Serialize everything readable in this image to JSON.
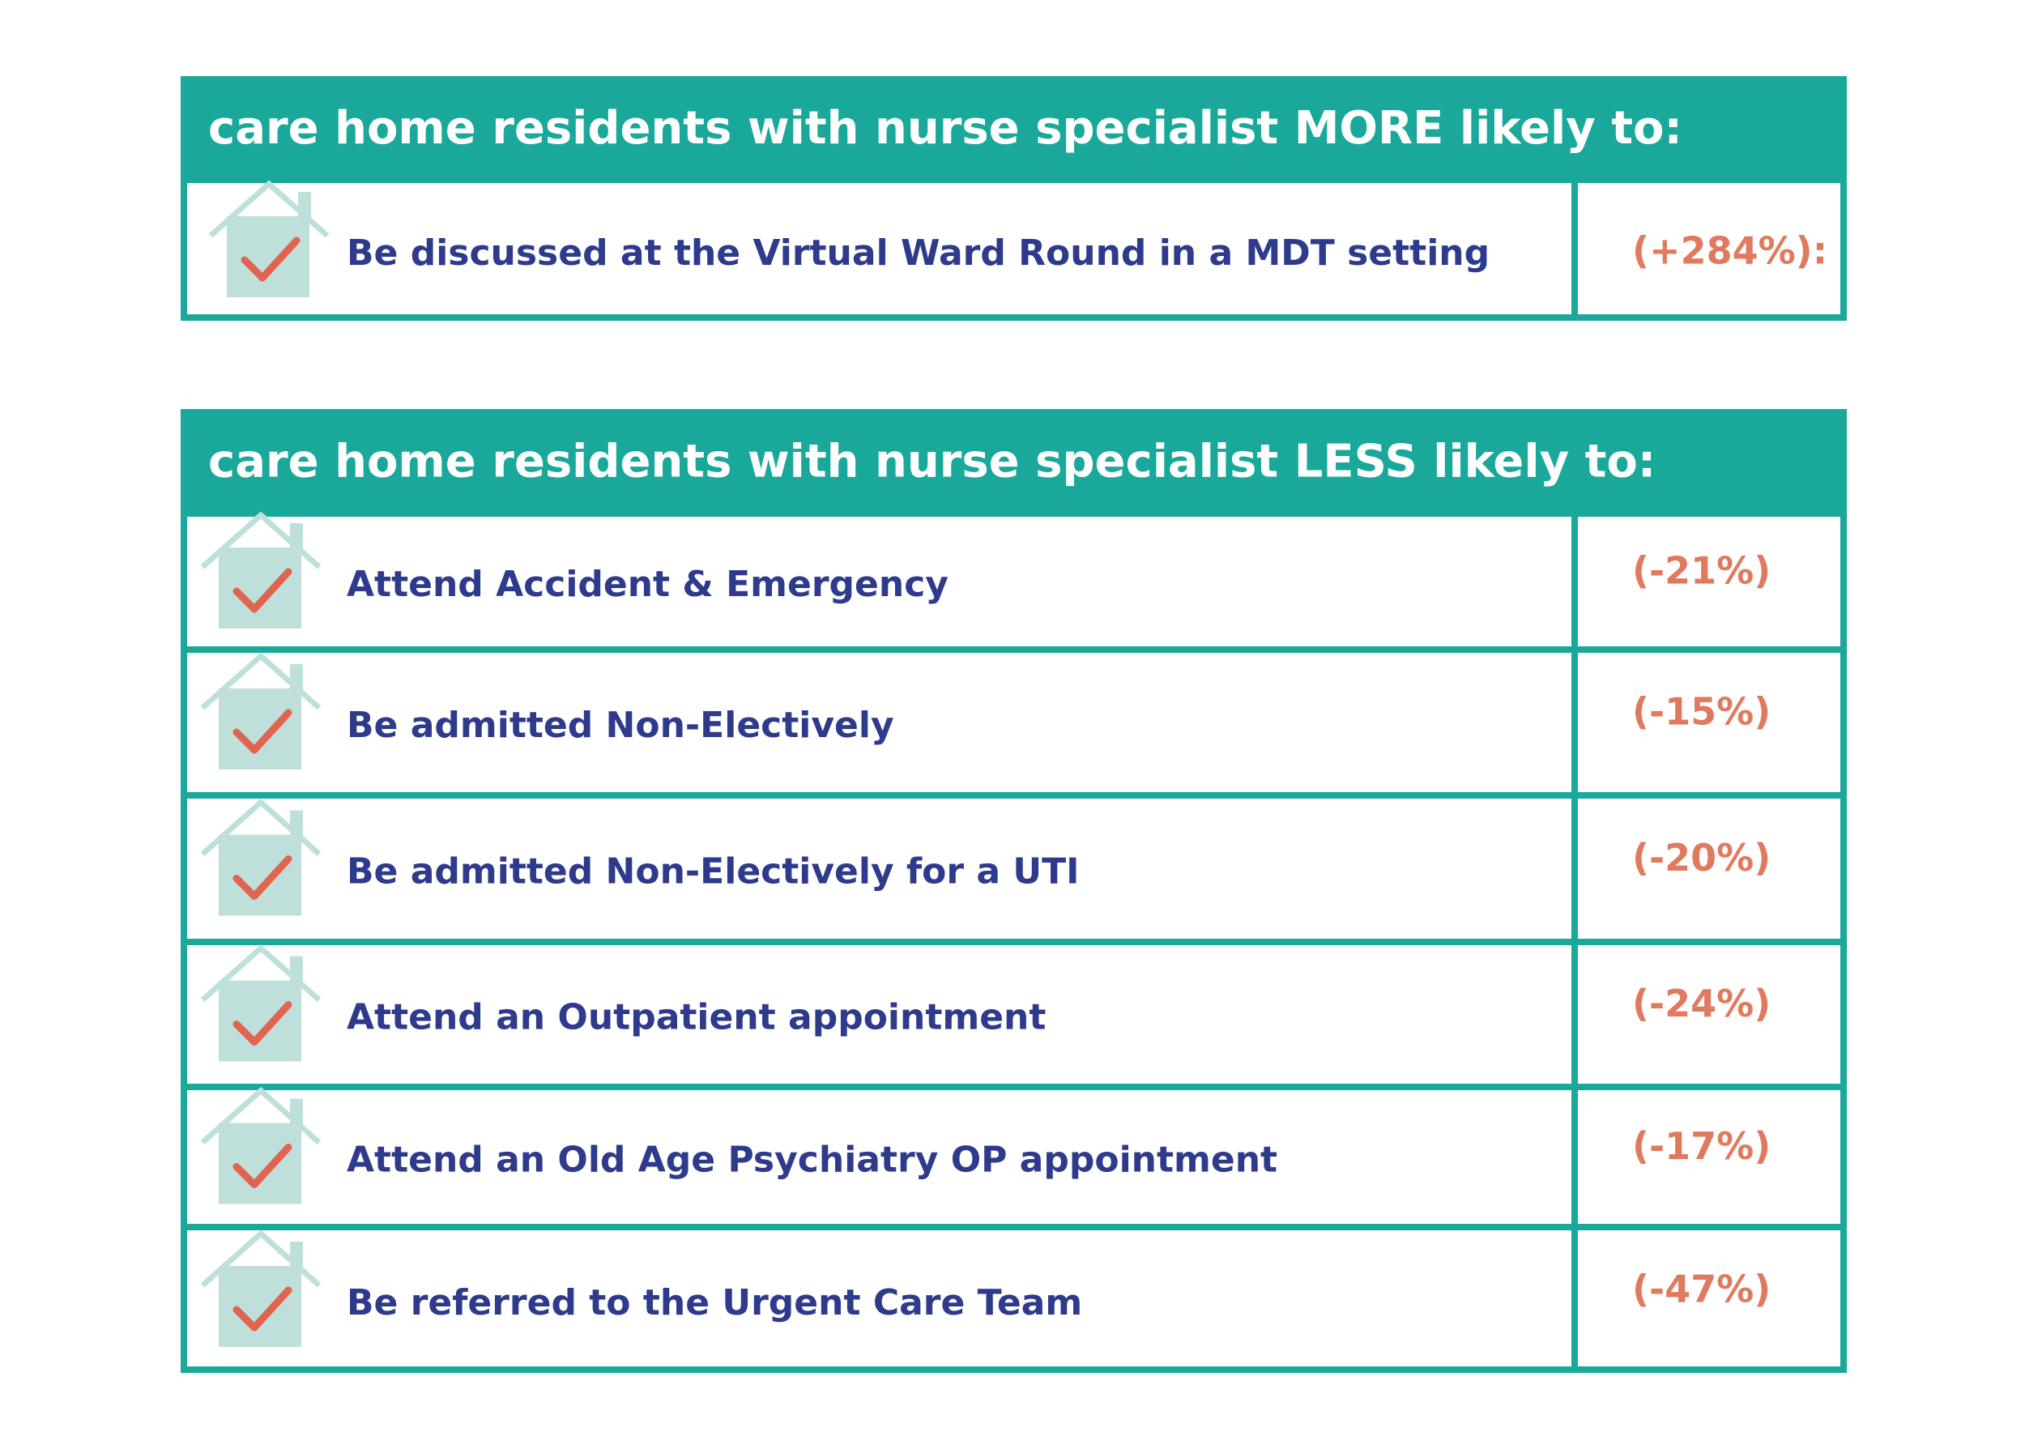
{
  "tables": [
    {
      "header": "care home residents with nurse specialist MORE likely to:",
      "rows": [
        {
          "label": "Be discussed at the Virtual Ward Round in a MDT setting",
          "value": "(+284%):"
        }
      ]
    },
    {
      "header": "care home residents with nurse specialist LESS likely to:",
      "rows": [
        {
          "label": "Attend Accident & Emergency",
          "value": "(-21%)"
        },
        {
          "label": "Be admitted Non-Electively",
          "value": "(-15%)"
        },
        {
          "label": "Be admitted Non-Electively for a UTI",
          "value": "(-20%)"
        },
        {
          "label": "Attend an Outpatient appointment",
          "value": "(-24%)"
        },
        {
          "label": "Attend an Old Age Psychiatry OP appointment",
          "value": "(-17%)"
        },
        {
          "label": "Be referred to the Urgent Care Team",
          "value": "(-47%)"
        }
      ]
    }
  ]
}
